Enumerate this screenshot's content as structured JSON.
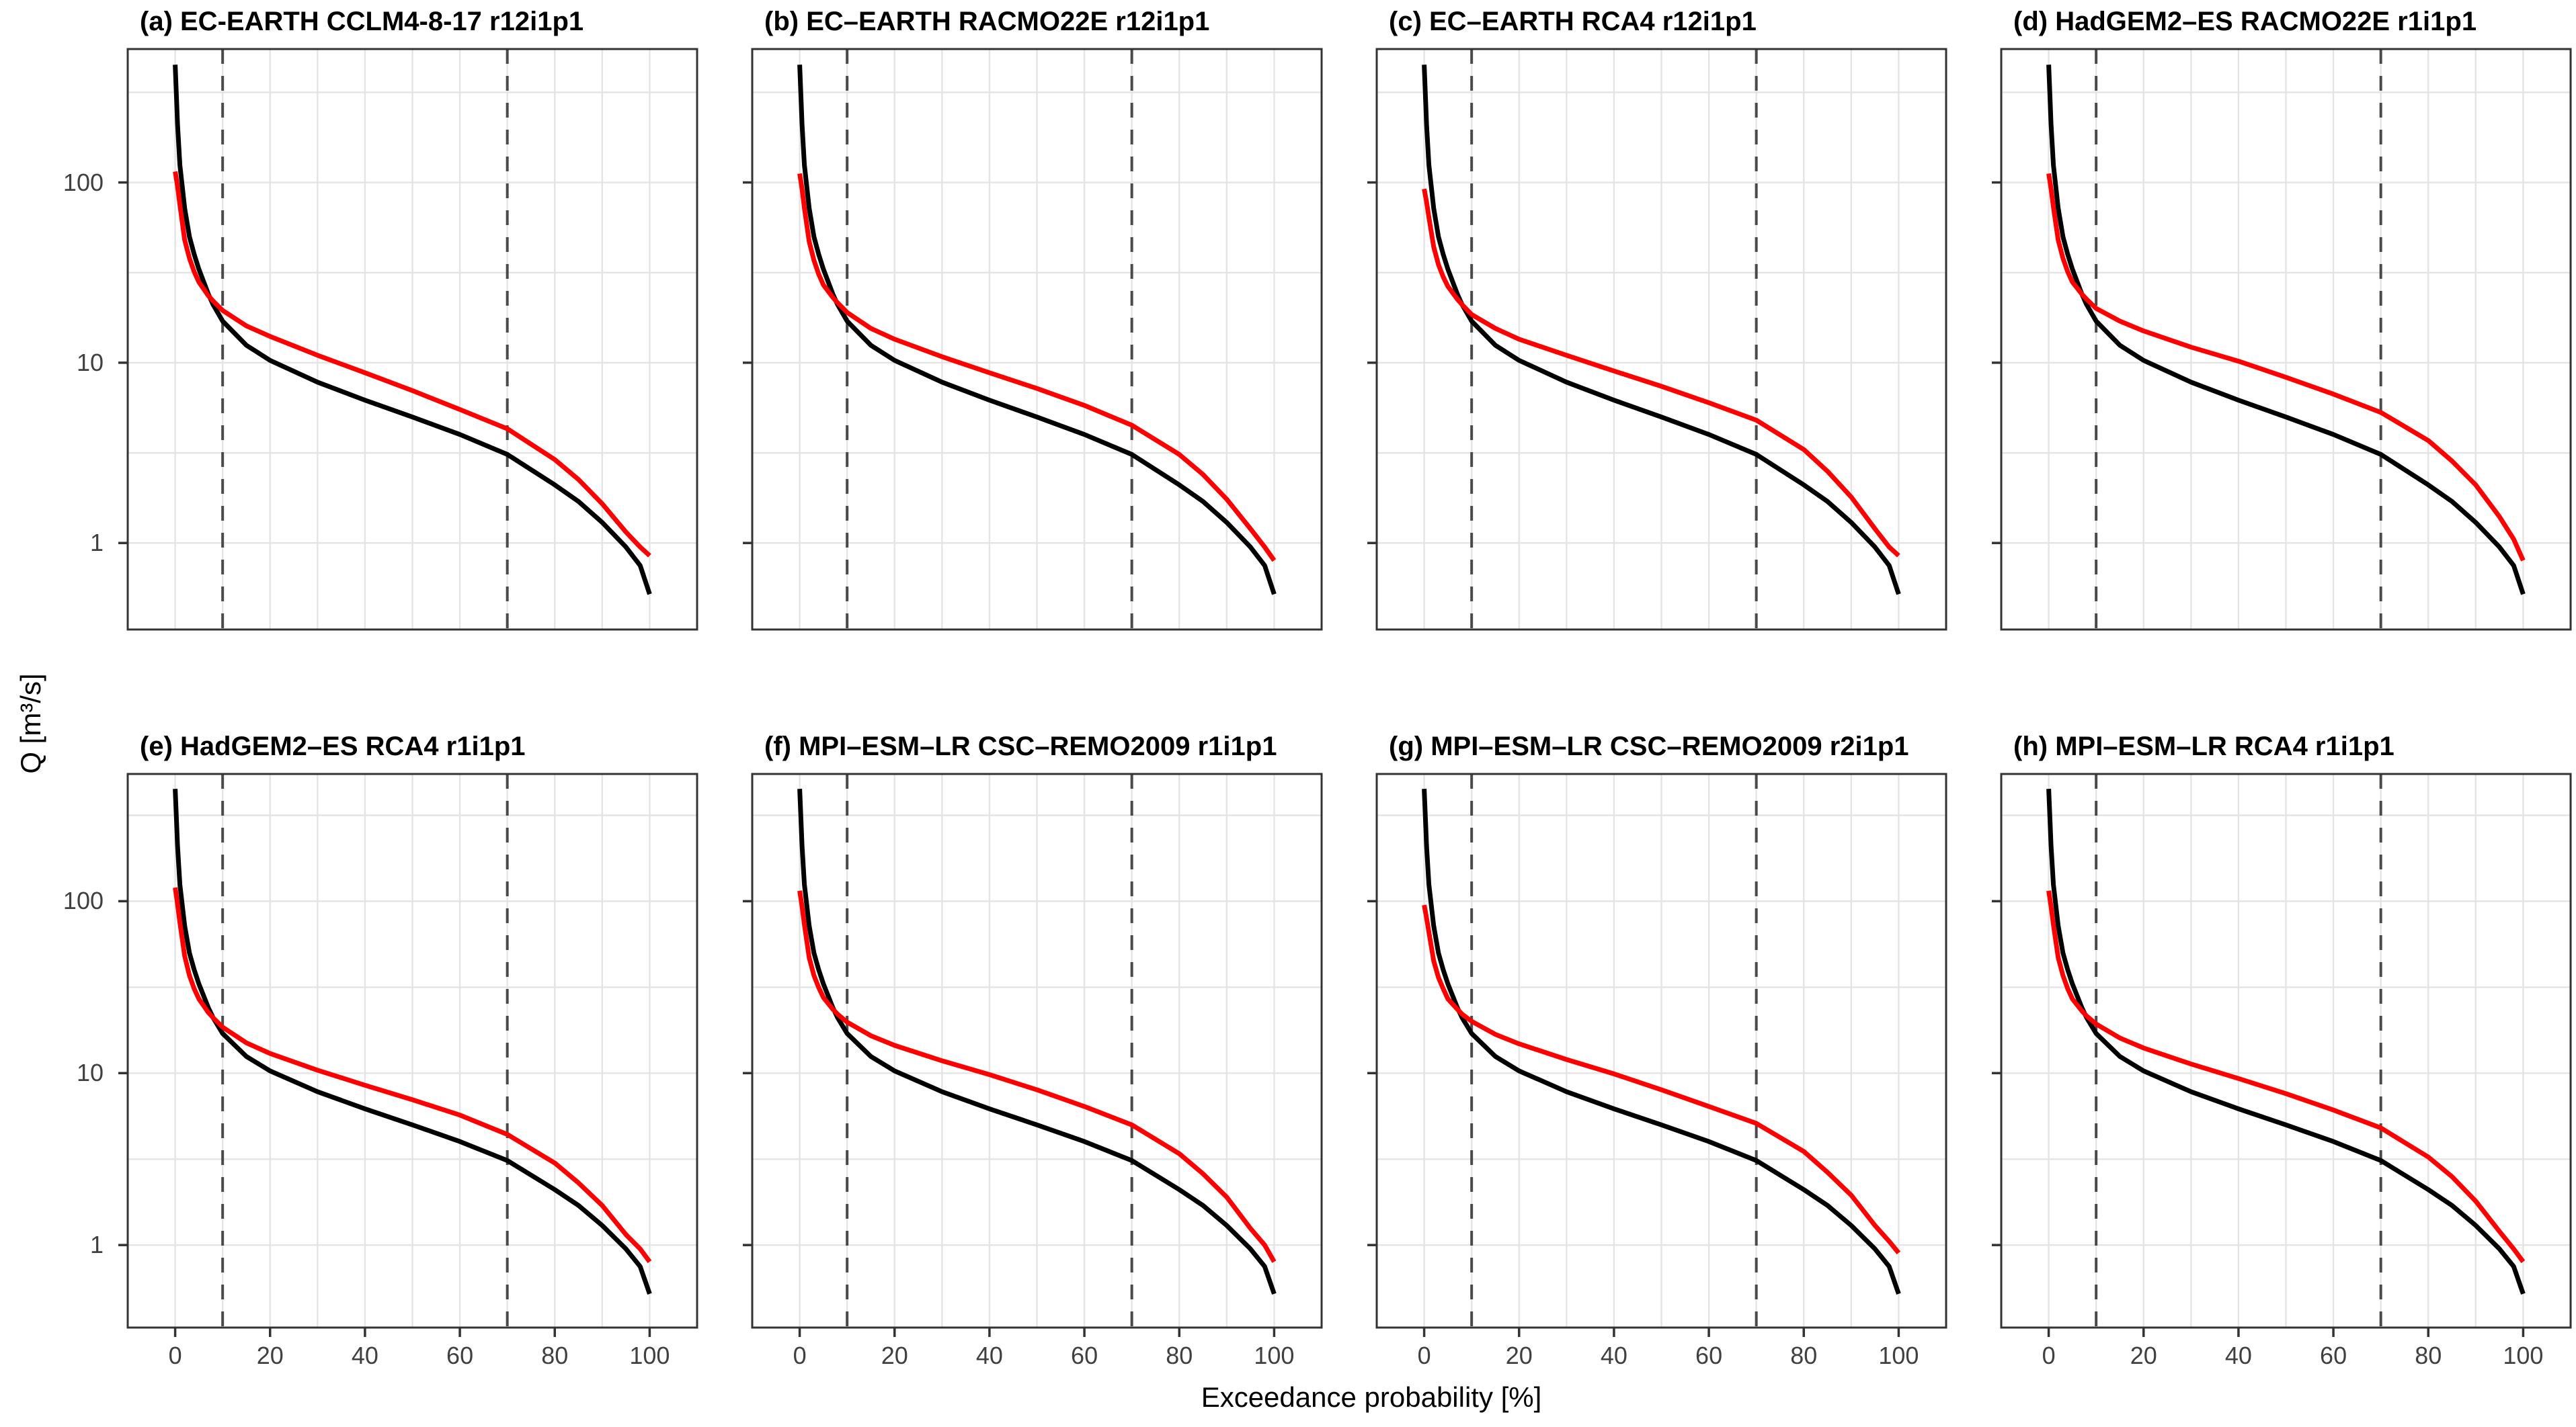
{
  "figure": {
    "x_axis_label": "Exceedance probability [%]",
    "y_axis_label": "Q [m³/s]"
  },
  "chart_data": {
    "type": "line",
    "log_y": true,
    "title": "",
    "xlabel": "Exceedance probability [%]",
    "ylabel": "Q [m³/s]",
    "x_ticks": [
      0,
      20,
      40,
      60,
      80,
      100
    ],
    "x_tick_labels": [
      "0",
      "20",
      "40",
      "60",
      "80",
      "100"
    ],
    "y_ticks": [
      1,
      10,
      100
    ],
    "y_tick_labels": [
      "1",
      "10",
      "100"
    ],
    "x_minor_gridlines": [
      10,
      30,
      50,
      70,
      90
    ],
    "y_minor_gridlines": [
      0.316,
      3.16,
      31.6,
      316
    ],
    "xlim": [
      -10,
      110
    ],
    "ylim_log10": [
      -0.48,
      2.74
    ],
    "dashed_vlines_percent": [
      10,
      70
    ],
    "grid": true,
    "legend_position": "none",
    "colors": {
      "observed_curve": "#000000",
      "simulated_curve": "#FF0000",
      "dashed_vline": "#4a4a4a",
      "gridline": "#e4e4e4",
      "panel_border": "#333333",
      "tick_text": "#404040",
      "background": "#ffffff"
    },
    "exceedance_percent": [
      0,
      0.5,
      1,
      2,
      3,
      4,
      5,
      7,
      8,
      10,
      15,
      20,
      30,
      40,
      50,
      60,
      70,
      80,
      85,
      90,
      95,
      98,
      100
    ],
    "panels": [
      {
        "id": "a",
        "title": "(a) EC-EARTH CCLM4-8-17 r12i1p1",
        "series": [
          {
            "name": "observed",
            "color": "#000000",
            "q_m3s": [
              450,
              210,
              125,
              72,
              50,
              40,
              33,
              24,
              21,
              17,
              12.5,
              10.3,
              7.8,
              6.2,
              5.0,
              4.0,
              3.1,
              2.1,
              1.7,
              1.3,
              0.95,
              0.75,
              0.52
            ]
          },
          {
            "name": "simulated",
            "color": "#FF0000",
            "q_m3s": [
              115,
              95,
              75,
              48,
              38,
              32,
              28,
              23.5,
              22,
              19.5,
              16,
              14,
              11,
              8.8,
              7.0,
              5.5,
              4.3,
              2.9,
              2.25,
              1.65,
              1.15,
              0.95,
              0.85
            ]
          }
        ]
      },
      {
        "id": "b",
        "title": "(b) EC–EARTH RACMO22E r12i1p1",
        "series": [
          {
            "name": "observed",
            "color": "#000000",
            "q_m3s": [
              450,
              210,
              125,
              72,
              50,
              40,
              33,
              24,
              21,
              17,
              12.5,
              10.3,
              7.8,
              6.2,
              5.0,
              4.0,
              3.1,
              2.1,
              1.7,
              1.3,
              0.95,
              0.75,
              0.52
            ]
          },
          {
            "name": "simulated",
            "color": "#FF0000",
            "q_m3s": [
              112,
              92,
              72,
              47,
              37,
              31,
              27,
              23,
              21.5,
              19,
              15.5,
              13.5,
              10.8,
              8.8,
              7.2,
              5.8,
              4.5,
              3.1,
              2.4,
              1.75,
              1.2,
              0.95,
              0.8
            ]
          }
        ]
      },
      {
        "id": "c",
        "title": "(c) EC–EARTH RCA4 r12i1p1",
        "series": [
          {
            "name": "observed",
            "color": "#000000",
            "q_m3s": [
              450,
              210,
              125,
              72,
              50,
              40,
              33,
              24,
              21,
              17,
              12.5,
              10.3,
              7.8,
              6.2,
              5.0,
              4.0,
              3.1,
              2.1,
              1.7,
              1.3,
              0.95,
              0.75,
              0.52
            ]
          },
          {
            "name": "simulated",
            "color": "#FF0000",
            "q_m3s": [
              92,
              78,
              64,
              44,
              35,
              30,
              26.5,
              22.5,
              21,
              18.5,
              15.5,
              13.5,
              11,
              9.0,
              7.4,
              6.0,
              4.8,
              3.3,
              2.5,
              1.8,
              1.2,
              0.95,
              0.85
            ]
          }
        ]
      },
      {
        "id": "d",
        "title": "(d) HadGEM2–ES RACMO22E r1i1p1",
        "series": [
          {
            "name": "observed",
            "color": "#000000",
            "q_m3s": [
              450,
              210,
              125,
              72,
              50,
              40,
              33,
              24,
              21,
              17,
              12.5,
              10.3,
              7.8,
              6.2,
              5.0,
              4.0,
              3.1,
              2.1,
              1.7,
              1.3,
              0.95,
              0.75,
              0.52
            ]
          },
          {
            "name": "simulated",
            "color": "#FF0000",
            "q_m3s": [
              112,
              92,
              73,
              48,
              38,
              32,
              28,
              24,
              22.5,
              20,
              17,
              15,
              12.2,
              10.2,
              8.3,
              6.7,
              5.3,
              3.7,
              2.85,
              2.1,
              1.4,
              1.05,
              0.8
            ]
          }
        ]
      },
      {
        "id": "e",
        "title": "(e) HadGEM2–ES RCA4 r1i1p1",
        "series": [
          {
            "name": "observed",
            "color": "#000000",
            "q_m3s": [
              450,
              210,
              125,
              72,
              50,
              40,
              33,
              24,
              21,
              17,
              12.5,
              10.3,
              7.8,
              6.2,
              5.0,
              4.0,
              3.1,
              2.1,
              1.7,
              1.3,
              0.95,
              0.75,
              0.52
            ]
          },
          {
            "name": "simulated",
            "color": "#FF0000",
            "q_m3s": [
              120,
              96,
              75,
              48,
              37,
              31,
              27,
              22.5,
              21,
              18.5,
              15,
              13,
              10.4,
              8.5,
              7.0,
              5.7,
              4.4,
              3.0,
              2.3,
              1.7,
              1.15,
              0.95,
              0.8
            ]
          }
        ]
      },
      {
        "id": "f",
        "title": "(f) MPI–ESM–LR CSC–REMO2009 r1i1p1",
        "series": [
          {
            "name": "observed",
            "color": "#000000",
            "q_m3s": [
              450,
              210,
              125,
              72,
              50,
              40,
              33,
              24,
              21,
              17,
              12.5,
              10.3,
              7.8,
              6.2,
              5.0,
              4.0,
              3.1,
              2.1,
              1.7,
              1.3,
              0.95,
              0.75,
              0.52
            ]
          },
          {
            "name": "simulated",
            "color": "#FF0000",
            "q_m3s": [
              115,
              93,
              73,
              47,
              37,
              31.5,
              27.5,
              23.5,
              22,
              19.8,
              16.5,
              14.5,
              11.8,
              9.8,
              8.0,
              6.4,
              5.0,
              3.4,
              2.6,
              1.9,
              1.25,
              1.0,
              0.8
            ]
          }
        ]
      },
      {
        "id": "g",
        "title": "(g) MPI–ESM–LR CSC–REMO2009 r2i1p1",
        "series": [
          {
            "name": "observed",
            "color": "#000000",
            "q_m3s": [
              450,
              210,
              125,
              72,
              50,
              40,
              33,
              24,
              21,
              17,
              12.5,
              10.3,
              7.8,
              6.2,
              5.0,
              4.0,
              3.1,
              2.1,
              1.7,
              1.3,
              0.95,
              0.75,
              0.52
            ]
          },
          {
            "name": "simulated",
            "color": "#FF0000",
            "q_m3s": [
              95,
              80,
              66,
              45,
              36,
              31,
              27,
              23.5,
              22,
              20,
              16.8,
              14.8,
              12.0,
              9.9,
              8.0,
              6.4,
              5.1,
              3.5,
              2.65,
              1.95,
              1.3,
              1.05,
              0.9
            ]
          }
        ]
      },
      {
        "id": "h",
        "title": "(h) MPI–ESM–LR RCA4 r1i1p1",
        "series": [
          {
            "name": "observed",
            "color": "#000000",
            "q_m3s": [
              450,
              210,
              125,
              72,
              50,
              40,
              33,
              24,
              21,
              17,
              12.5,
              10.3,
              7.8,
              6.2,
              5.0,
              4.0,
              3.1,
              2.1,
              1.7,
              1.3,
              0.95,
              0.75,
              0.52
            ]
          },
          {
            "name": "simulated",
            "color": "#FF0000",
            "q_m3s": [
              115,
              93,
              73,
              47,
              37,
              31,
              27,
              23,
              21.5,
              19.3,
              16,
              14,
              11.3,
              9.3,
              7.6,
              6.1,
              4.8,
              3.25,
              2.5,
              1.8,
              1.2,
              0.95,
              0.8
            ]
          }
        ]
      }
    ]
  }
}
